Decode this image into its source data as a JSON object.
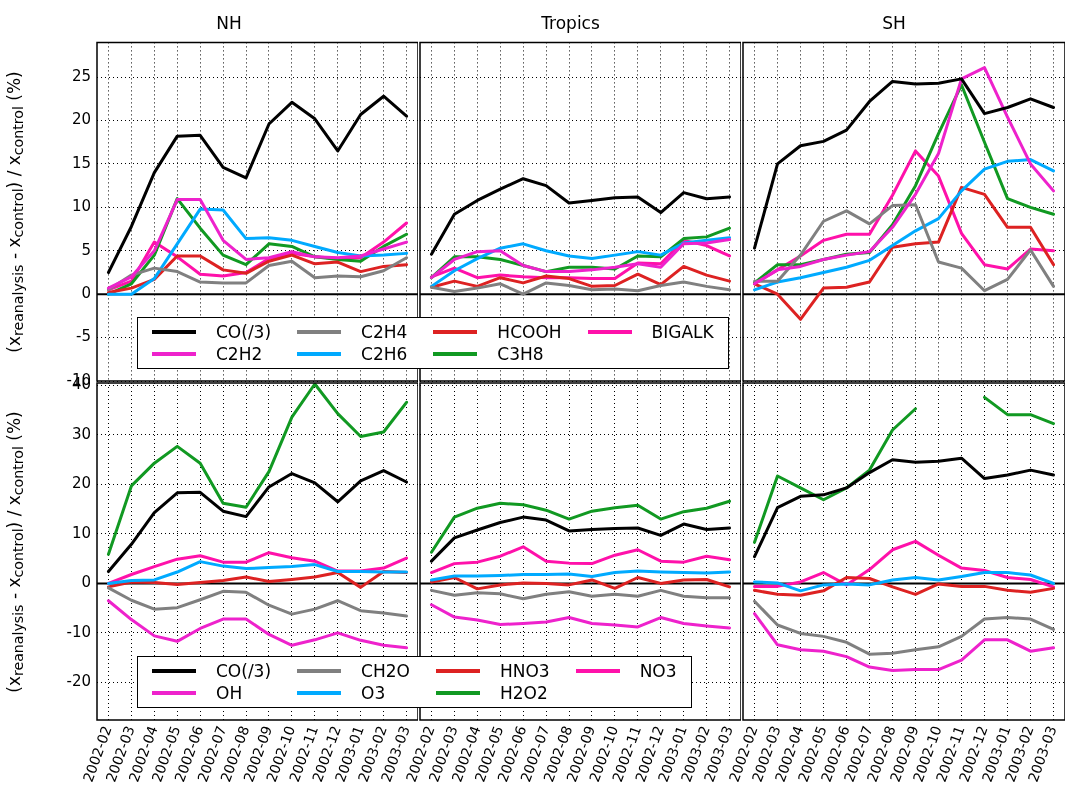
{
  "chart_data": [
    {
      "type": "line",
      "title": "NH",
      "ylabel": "(x$_{reanalysis}$ - x$_{control}$) / x$_{control}$ (%)",
      "categories": [
        "2002-02",
        "2002-03",
        "2002-04",
        "2002-05",
        "2002-06",
        "2002-07",
        "2002-08",
        "2002-09",
        "2002-10",
        "2002-11",
        "2002-12",
        "2003-01",
        "2003-02",
        "2003-03"
      ],
      "ylim": [
        -10,
        29
      ],
      "yticks": [
        -10,
        -5,
        0,
        5,
        10,
        15,
        20,
        25
      ],
      "grid": true,
      "legend": "bottom right",
      "tick_labels": "y",
      "ref_lines": [
        {
          "axis": "y",
          "value": 0,
          "color": "#000000"
        }
      ],
      "series": [
        {
          "name": "CO(/3)",
          "color": "#000000",
          "values": [
            2.5,
            7.8,
            14,
            18.2,
            18.3,
            14.6,
            13.4,
            19.6,
            22.1,
            20.2,
            16.5,
            20.7,
            22.8,
            20.5
          ]
        },
        {
          "name": "C2H2",
          "color": "#ee22cc",
          "values": [
            0.7,
            2,
            5,
            10.9,
            10.9,
            6.2,
            4,
            4.2,
            4.9,
            4.3,
            4.2,
            4.4,
            5.2,
            6
          ]
        },
        {
          "name": "C2H4",
          "color": "#808080",
          "values": [
            0.5,
            2.2,
            3,
            2.6,
            1.4,
            1.3,
            1.3,
            3.3,
            3.8,
            1.9,
            2.1,
            2,
            2.7,
            4.2
          ]
        },
        {
          "name": "C2H6",
          "color": "#00aaff",
          "values": [
            0,
            0,
            1.8,
            5.8,
            9.8,
            9.7,
            6.4,
            6.5,
            6.2,
            5.5,
            4.8,
            4.4,
            4.5,
            4.7
          ]
        },
        {
          "name": "HCOOH",
          "color": "#dd2222",
          "values": [
            0.2,
            0.7,
            1.7,
            4.4,
            4.4,
            2.8,
            2.4,
            3.8,
            4.5,
            3.5,
            3.7,
            2.6,
            3.2,
            3.4
          ]
        },
        {
          "name": "C3H8",
          "color": "#119922",
          "values": [
            0,
            1.2,
            4.5,
            11,
            7.6,
            4.5,
            3.4,
            5.8,
            5.5,
            4.3,
            4,
            3.8,
            5.5,
            6.9
          ]
        },
        {
          "name": "BIGALK",
          "color": "#ff11aa",
          "values": [
            0.5,
            1.5,
            6,
            4.3,
            2.3,
            2.1,
            2.5,
            4.1,
            4.7,
            4.3,
            4.1,
            4.2,
            6,
            8.2
          ]
        }
      ]
    },
    {
      "type": "line",
      "title": "Tropics",
      "categories": [
        "2002-02",
        "2002-03",
        "2002-04",
        "2002-05",
        "2002-06",
        "2002-07",
        "2002-08",
        "2002-09",
        "2002-10",
        "2002-11",
        "2002-12",
        "2003-01",
        "2003-02",
        "2003-03"
      ],
      "ylim": [
        -10,
        29
      ],
      "yticks": [
        -10,
        -5,
        0,
        5,
        10,
        15,
        20,
        25
      ],
      "grid": true,
      "tick_labels": false,
      "ref_lines": [
        {
          "axis": "y",
          "value": 0,
          "color": "#000000"
        }
      ],
      "series": [
        {
          "color": "#000000",
          "values": [
            4.6,
            9.2,
            10.8,
            12.1,
            13.3,
            12.5,
            10.5,
            10.8,
            11.1,
            11.2,
            9.4,
            11.7,
            11,
            11.2
          ]
        },
        {
          "color": "#ee22cc",
          "values": [
            1.9,
            4,
            4.9,
            5,
            3.3,
            2.6,
            2.6,
            2.8,
            3.1,
            3.5,
            3.1,
            5.8,
            5.9,
            6.3
          ]
        },
        {
          "color": "#808080",
          "values": [
            0.8,
            0.3,
            0.7,
            1.2,
            0,
            1.3,
            1,
            0.5,
            0.6,
            0.4,
            1,
            1.4,
            0.9,
            0.5
          ]
        },
        {
          "color": "#00aaff",
          "values": [
            0.9,
            2.7,
            4.1,
            5.3,
            5.8,
            5,
            4.4,
            4.1,
            4.5,
            4.9,
            4.5,
            5.9,
            6.2,
            6.5
          ]
        },
        {
          "color": "#dd2222",
          "values": [
            0.8,
            1.5,
            0.9,
            1.9,
            1.3,
            2.1,
            1.8,
            0.9,
            1,
            2.3,
            1.1,
            3.2,
            2.2,
            1.5
          ]
        },
        {
          "color": "#119922",
          "values": [
            1.9,
            4.3,
            4.3,
            4,
            3.3,
            2.6,
            3.1,
            3.1,
            2.9,
            4.4,
            4.3,
            6.4,
            6.6,
            7.6
          ]
        },
        {
          "color": "#ff11aa",
          "values": [
            2,
            3,
            1.9,
            2.2,
            2,
            1.9,
            1.9,
            1.8,
            1.8,
            3.6,
            3.5,
            6.2,
            5.6,
            4.4
          ]
        }
      ]
    },
    {
      "type": "line",
      "title": "SH",
      "categories": [
        "2002-02",
        "2002-03",
        "2002-04",
        "2002-05",
        "2002-06",
        "2002-07",
        "2002-08",
        "2002-09",
        "2002-10",
        "2002-11",
        "2002-12",
        "2003-01",
        "2003-02",
        "2003-03"
      ],
      "ylim": [
        -10,
        29
      ],
      "yticks": [
        -10,
        -5,
        0,
        5,
        10,
        15,
        20,
        25
      ],
      "grid": true,
      "tick_labels": false,
      "ref_lines": [
        {
          "axis": "y",
          "value": 0,
          "color": "#000000"
        }
      ],
      "series": [
        {
          "color": "#000000",
          "values": [
            5.3,
            15,
            17.1,
            17.6,
            18.9,
            22.2,
            24.5,
            24.2,
            24.3,
            24.8,
            20.8,
            21.5,
            22.5,
            21.5
          ]
        },
        {
          "color": "#ee22cc",
          "values": [
            1.2,
            2.8,
            3.2,
            4,
            4.5,
            4.9,
            7.7,
            11.5,
            16.2,
            24.8,
            26.1,
            20.4,
            15,
            11.9
          ]
        },
        {
          "color": "#808080",
          "values": [
            1.5,
            1.5,
            4.5,
            8.4,
            9.6,
            8.1,
            10.2,
            10.3,
            3.7,
            3,
            0.4,
            1.7,
            5.1,
            0.9
          ]
        },
        {
          "color": "#00aaff",
          "values": [
            0.5,
            1.4,
            1.9,
            2.5,
            3.1,
            3.9,
            5.6,
            7.3,
            8.7,
            11.9,
            14.4,
            15.3,
            15.5,
            14.2
          ]
        },
        {
          "color": "#dd2222",
          "values": [
            1.2,
            0,
            -2.9,
            0.7,
            0.8,
            1.4,
            5.4,
            5.8,
            6,
            12.3,
            11.5,
            7.7,
            7.7,
            3.4
          ]
        },
        {
          "color": "#119922",
          "values": [
            1.3,
            3.4,
            3.4,
            4,
            4.6,
            4.8,
            8,
            12.5,
            18.5,
            24.1,
            17.5,
            11,
            10,
            9.2
          ]
        },
        {
          "color": "#ff11aa",
          "values": [
            1.2,
            2.8,
            4.4,
            6.2,
            6.9,
            6.9,
            11.4,
            16.5,
            13.6,
            7,
            3.4,
            2.9,
            5.2,
            5
          ]
        }
      ]
    },
    {
      "type": "line",
      "ylabel": "(x$_{reanalysis}$ - x$_{control}$) / x$_{control}$ (%)",
      "categories": [
        "2002-02",
        "2002-03",
        "2002-04",
        "2002-05",
        "2002-06",
        "2002-07",
        "2002-08",
        "2002-09",
        "2002-10",
        "2002-11",
        "2002-12",
        "2003-01",
        "2003-02",
        "2003-03"
      ],
      "ylim": [
        -27.6,
        40.5
      ],
      "yticks": [
        -20,
        -10,
        0,
        10,
        20,
        30,
        40
      ],
      "grid": true,
      "legend": "bottom right",
      "ref_lines": [
        {
          "axis": "y",
          "value": 0,
          "color": "#000000"
        }
      ],
      "series": [
        {
          "name": "CO(/3)",
          "color": "#000000",
          "values": [
            2.4,
            7.9,
            14.3,
            18.3,
            18.4,
            14.6,
            13.5,
            19.5,
            22.2,
            20.3,
            16.5,
            20.7,
            22.8,
            20.5
          ]
        },
        {
          "name": "OH",
          "color": "#ee22cc",
          "values": [
            -3.5,
            -7.3,
            -10.6,
            -11.7,
            -9.1,
            -7.2,
            -7.2,
            -10.3,
            -12.5,
            -11.4,
            -10,
            -11.5,
            -12.5,
            -13
          ]
        },
        {
          "name": "CH2O",
          "color": "#808080",
          "values": [
            -0.9,
            -3.4,
            -5.2,
            -4.9,
            -3.3,
            -1.6,
            -1.8,
            -4.4,
            -6.2,
            -5.2,
            -3.5,
            -5.5,
            -6,
            -6.6
          ]
        },
        {
          "name": "O3",
          "color": "#00aaff",
          "values": [
            0,
            0.6,
            0.7,
            2.3,
            4.4,
            3.5,
            3,
            3.2,
            3.4,
            3.8,
            2.4,
            2.4,
            2.3,
            2.3
          ]
        },
        {
          "name": "HNO3",
          "color": "#dd2222",
          "values": [
            -0.7,
            0.3,
            0.2,
            -0.2,
            0.2,
            0.6,
            1.3,
            0.4,
            0.8,
            1.3,
            2.2,
            -0.8,
            2.4,
            2.2
          ]
        },
        {
          "name": "H2O2",
          "color": "#119922",
          "values": [
            5.9,
            19.7,
            24.3,
            27.7,
            24.3,
            16.2,
            15.4,
            22.6,
            33.6,
            40.3,
            34.3,
            29.7,
            30.6,
            36.6
          ]
        },
        {
          "name": "NO3",
          "color": "#ff11aa",
          "values": [
            0,
            1.8,
            3.4,
            4.9,
            5.6,
            4.3,
            4.3,
            6.2,
            5.2,
            4.5,
            2.5,
            2.5,
            3.1,
            5.1
          ]
        }
      ]
    },
    {
      "type": "line",
      "categories": [
        "2002-02",
        "2002-03",
        "2002-04",
        "2002-05",
        "2002-06",
        "2002-07",
        "2002-08",
        "2002-09",
        "2002-10",
        "2002-11",
        "2002-12",
        "2003-01",
        "2003-02",
        "2003-03"
      ],
      "ylim": [
        -27.6,
        40.5
      ],
      "yticks": [
        -20,
        -10,
        0,
        10,
        20,
        30,
        40
      ],
      "grid": true,
      "tick_labels": "x",
      "ref_lines": [
        {
          "axis": "y",
          "value": 0,
          "color": "#000000"
        }
      ],
      "series": [
        {
          "color": "#000000",
          "values": [
            4.5,
            9.2,
            10.8,
            12.3,
            13.4,
            12.8,
            10.6,
            10.9,
            11.1,
            11.2,
            9.7,
            12,
            10.9,
            11.2
          ]
        },
        {
          "color": "#ee22cc",
          "values": [
            -4.3,
            -6.8,
            -7.4,
            -8.3,
            -8.1,
            -7.8,
            -6.9,
            -8.1,
            -8.4,
            -8.8,
            -6.9,
            -8.1,
            -8.6,
            -9
          ]
        },
        {
          "color": "#808080",
          "values": [
            -1.4,
            -2.4,
            -1.9,
            -2.1,
            -3.1,
            -2.2,
            -1.7,
            -2.6,
            -2.2,
            -2.6,
            -1.4,
            -2.6,
            -2.9,
            -2.9
          ]
        },
        {
          "color": "#00aaff",
          "values": [
            0.7,
            1.5,
            1.5,
            1.6,
            1.8,
            1.8,
            1.9,
            1.4,
            2.2,
            2.5,
            2.3,
            2.2,
            2.1,
            2.3
          ]
        },
        {
          "color": "#dd2222",
          "values": [
            0.3,
            1.2,
            -1.1,
            -0.3,
            0.1,
            0,
            -0.3,
            0.7,
            -1,
            1.2,
            0,
            0.7,
            0.8,
            -0.7
          ]
        },
        {
          "color": "#119922",
          "values": [
            6.3,
            13.4,
            15.2,
            16.2,
            15.9,
            14.8,
            13,
            14.6,
            15.3,
            15.8,
            13,
            14.5,
            15.2,
            16.6
          ]
        },
        {
          "color": "#ff11aa",
          "values": [
            2.2,
            4,
            4.3,
            5.5,
            7.4,
            4.5,
            4.1,
            4,
            5.7,
            6.8,
            4.5,
            4.3,
            5.5,
            4.8
          ]
        }
      ]
    },
    {
      "type": "line",
      "categories": [
        "2002-02",
        "2002-03",
        "2002-04",
        "2002-05",
        "2002-06",
        "2002-07",
        "2002-08",
        "2002-09",
        "2002-10",
        "2002-11",
        "2002-12",
        "2003-01",
        "2003-02",
        "2003-03"
      ],
      "ylim": [
        -27.6,
        40.5
      ],
      "yticks": [
        -20,
        -10,
        0,
        10,
        20,
        30,
        40
      ],
      "grid": true,
      "tick_labels": "x",
      "ref_lines": [
        {
          "axis": "y",
          "value": 0,
          "color": "#000000"
        }
      ],
      "series": [
        {
          "color": "#000000",
          "values": [
            5.4,
            15.3,
            17.6,
            17.9,
            19.3,
            22.4,
            25,
            24.5,
            24.7,
            25.3,
            21.2,
            21.9,
            22.9,
            21.9
          ]
        },
        {
          "color": "#ee22cc",
          "values": [
            -6.1,
            -12.4,
            -13.4,
            -13.7,
            -14.8,
            -16.9,
            -17.6,
            -17.4,
            -17.4,
            -15.5,
            -11.4,
            -11.4,
            -13.7,
            -13
          ]
        },
        {
          "color": "#808080",
          "values": [
            -3.6,
            -8.4,
            -10.1,
            -10.7,
            -11.9,
            -14.3,
            -14.1,
            -13.4,
            -12.8,
            -10.7,
            -7.2,
            -6.9,
            -7.2,
            -9.3
          ]
        },
        {
          "color": "#00aaff",
          "values": [
            0.3,
            0.1,
            -1.5,
            -0.3,
            -0.1,
            -0.3,
            0.7,
            1.2,
            0.7,
            1.4,
            2.2,
            2.2,
            1.7,
            0
          ]
        },
        {
          "color": "#dd2222",
          "values": [
            -1.4,
            -2.2,
            -2.4,
            -1.5,
            1.2,
            1,
            -0.7,
            -2.2,
            -0.1,
            -0.6,
            -0.6,
            -1.4,
            -1.8,
            -1
          ]
        },
        {
          "color": "#119922",
          "values": [
            8.3,
            21.7,
            19.3,
            16.9,
            19.3,
            22.9,
            31,
            35.3,
            null,
            null,
            37.6,
            34.1,
            34.1,
            32.3
          ]
        },
        {
          "color": "#ff11aa",
          "values": [
            -0.6,
            -0.6,
            0.3,
            2.2,
            -0.3,
            2.8,
            6.8,
            8.5,
            5.7,
            3.1,
            2.6,
            1.2,
            0.8,
            -0.7
          ]
        }
      ]
    }
  ]
}
